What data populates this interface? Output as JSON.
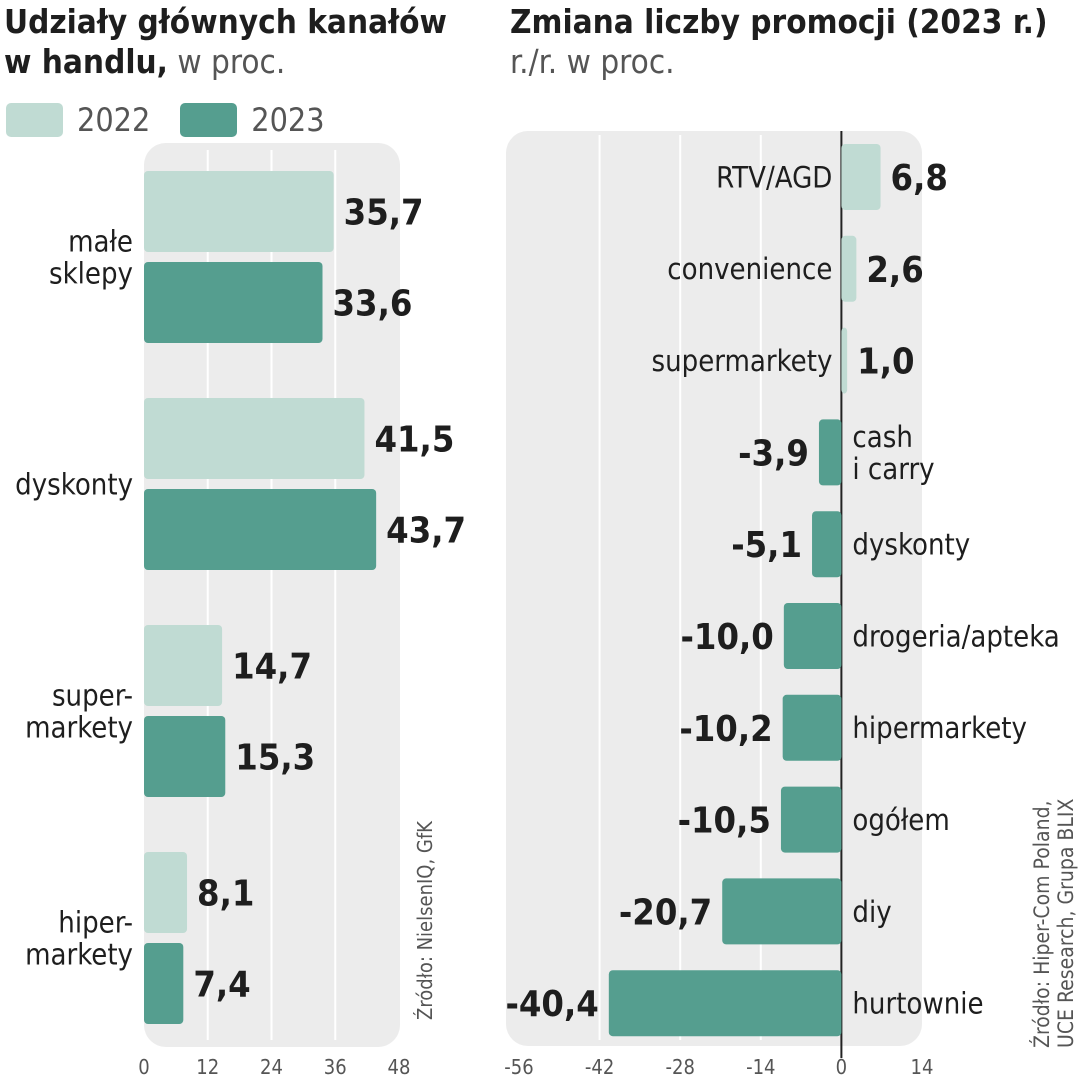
{
  "left": {
    "title_bold_1": "Udziały głównych kanałów",
    "title_bold_2": "w handlu,",
    "title_rest": " w proc.",
    "source": "Źródło: NielsenIQ, GfK"
  },
  "right": {
    "title": "Zmiana liczby promocji (2023 r.)",
    "subtitle": "r./r. w proc.",
    "source_line1": "Źródło: Hiper-Com Poland,",
    "source_line2": "UCE Research, Grupa BLIX"
  },
  "legend": [
    {
      "label": "2022",
      "color": "#c0dbd3"
    },
    {
      "label": "2023",
      "color": "#559e8f"
    }
  ],
  "colors": {
    "light": "#c0dbd3",
    "dark": "#559e8f",
    "panel": "#ececec",
    "grid": "#ffffff",
    "text": "#1e1e1e",
    "muted": "#555555"
  },
  "chart_data": [
    {
      "type": "bar",
      "orientation": "horizontal",
      "categories": [
        [
          "małe",
          "sklepy"
        ],
        [
          "dyskonty"
        ],
        [
          "super-",
          "markety"
        ],
        [
          "hiper-",
          "markety"
        ]
      ],
      "series": [
        {
          "name": "2022",
          "values": [
            35.7,
            41.5,
            14.7,
            8.1
          ],
          "labels": [
            "35,7",
            "41,5",
            "14,7",
            "8,1"
          ]
        },
        {
          "name": "2023",
          "values": [
            33.6,
            43.7,
            15.3,
            7.4
          ],
          "labels": [
            "33,6",
            "43,7",
            "15,3",
            "7,4"
          ]
        }
      ],
      "xlim": [
        0,
        48
      ],
      "xticks": [
        0,
        12,
        24,
        36,
        48
      ],
      "grid": true
    },
    {
      "type": "bar",
      "orientation": "horizontal",
      "categories": [
        [
          "RTV/AGD"
        ],
        [
          "convenience"
        ],
        [
          "supermarkety"
        ],
        [
          "cash",
          "i carry"
        ],
        [
          "dyskonty"
        ],
        [
          "drogeria/apteka"
        ],
        [
          "hipermarkety"
        ],
        [
          "ogółem"
        ],
        [
          "diy"
        ],
        [
          "hurtownie"
        ]
      ],
      "values": [
        6.8,
        2.6,
        1.0,
        -3.9,
        -5.1,
        -10.0,
        -10.2,
        -10.5,
        -20.7,
        -40.4
      ],
      "labels": [
        "6,8",
        "2,6",
        "1,0",
        "-3,9",
        "-5,1",
        "-10,0",
        "-10,2",
        "-10,5",
        "-20,7",
        "-40,4"
      ],
      "xlim": [
        -56,
        14
      ],
      "xticks": [
        -56,
        -42,
        -28,
        -14,
        0,
        14
      ],
      "grid": true
    }
  ]
}
